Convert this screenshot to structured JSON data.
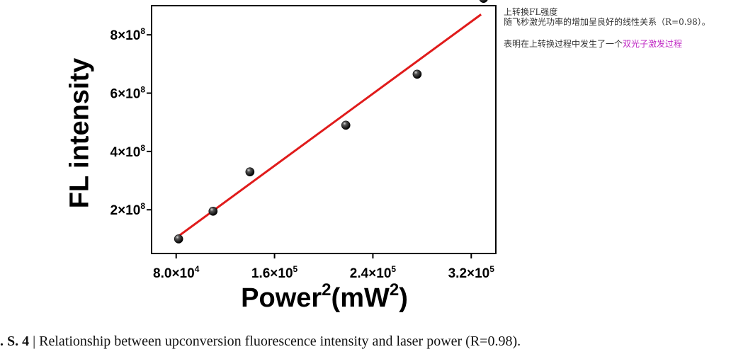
{
  "annotation": {
    "line1": "上转换FL强度",
    "line2": "随飞秒激光功率的增加呈良好的线性关系（R=0.98）。",
    "line3_plain": "表明在上转换过程中发生了一个",
    "line3_highlight": "双光子激发过程",
    "highlight_color": "#c02ac4"
  },
  "caption": {
    "prefix": ". S. 4",
    "separator": " | ",
    "text": "Relationship between upconversion fluorescence intensity and laser power (R=0.98)."
  },
  "chart_data": {
    "type": "scatter",
    "xlabel": "Power",
    "xlabel_sup1": "2",
    "xlabel_unit": "(mW",
    "xlabel_sup2": "2",
    "xlabel_end": ")",
    "ylabel": "FL intensity",
    "xlim": [
      60000,
      340000
    ],
    "ylim": [
      50000000,
      900000000
    ],
    "x_ticks": [
      {
        "value": 80000,
        "mantissa": "8.0×10",
        "exp": "4"
      },
      {
        "value": 160000,
        "mantissa": "1.6×10",
        "exp": "5"
      },
      {
        "value": 240000,
        "mantissa": "2.4×10",
        "exp": "5"
      },
      {
        "value": 320000,
        "mantissa": "3.2×10",
        "exp": "5"
      }
    ],
    "y_ticks": [
      {
        "value": 200000000,
        "mantissa": "2×10",
        "exp": "8"
      },
      {
        "value": 400000000,
        "mantissa": "4×10",
        "exp": "8"
      },
      {
        "value": 600000000,
        "mantissa": "6×10",
        "exp": "8"
      },
      {
        "value": 800000000,
        "mantissa": "8×10",
        "exp": "8"
      }
    ],
    "points": [
      {
        "x": 82000,
        "y": 100000000
      },
      {
        "x": 110000,
        "y": 195000000
      },
      {
        "x": 140000,
        "y": 330000000
      },
      {
        "x": 218000,
        "y": 490000000
      },
      {
        "x": 276000,
        "y": 665000000
      },
      {
        "x": 330000,
        "y": 925000000
      }
    ],
    "fit_line": {
      "x": [
        82000,
        328000
      ],
      "y": [
        110000000,
        870000000
      ],
      "color": "#e01b1b"
    },
    "marker_color": "#000000",
    "grid": false,
    "legend": "none"
  }
}
